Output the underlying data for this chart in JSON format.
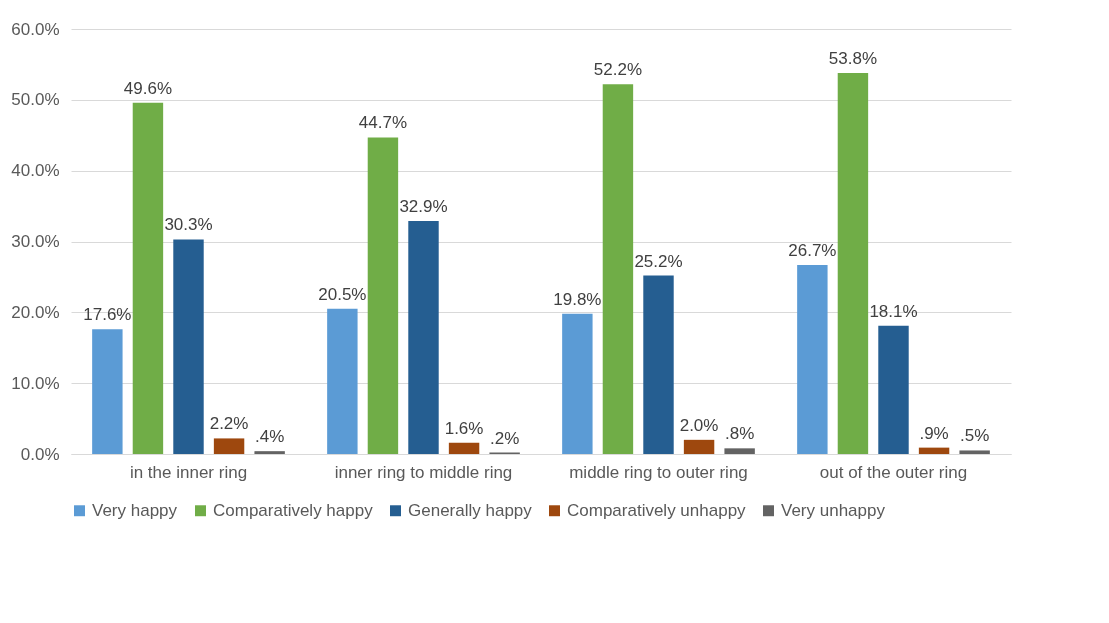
{
  "chart_data": {
    "type": "bar",
    "categories": [
      "in the inner ring",
      "inner ring to middle ring",
      "middle ring to outer ring",
      "out of the outer ring"
    ],
    "series": [
      {
        "name": "Very happy",
        "color": "#5b9bd5",
        "values": [
          17.6,
          20.5,
          19.8,
          26.7
        ],
        "value_labels": [
          "17.6%",
          "20.5%",
          "19.8%",
          "26.7%"
        ]
      },
      {
        "name": "Comparatively happy",
        "color": "#70ad47",
        "values": [
          49.6,
          44.7,
          52.2,
          53.8
        ],
        "value_labels": [
          "49.6%",
          "44.7%",
          "52.2%",
          "53.8%"
        ]
      },
      {
        "name": "Generally happy",
        "color": "#255e91",
        "values": [
          30.3,
          32.9,
          25.2,
          18.1
        ],
        "value_labels": [
          "30.3%",
          "32.9%",
          "25.2%",
          "18.1%"
        ]
      },
      {
        "name": "Comparatively unhappy",
        "color": "#9e480e",
        "values": [
          2.2,
          1.6,
          2.0,
          0.9
        ],
        "value_labels": [
          "2.2%",
          "1.6%",
          "2.0%",
          ".9%"
        ]
      },
      {
        "name": "Very unhappy",
        "color": "#636363",
        "values": [
          0.4,
          0.2,
          0.8,
          0.5
        ],
        "value_labels": [
          ".4%",
          ".2%",
          ".8%",
          ".5%"
        ]
      }
    ],
    "ylim": [
      0,
      60
    ],
    "yticks": [
      {
        "value": 0,
        "label": "0.0%"
      },
      {
        "value": 10,
        "label": "10.0%"
      },
      {
        "value": 20,
        "label": "20.0%"
      },
      {
        "value": 30,
        "label": "30.0%"
      },
      {
        "value": 40,
        "label": "40.0%"
      },
      {
        "value": 50,
        "label": "50.0%"
      },
      {
        "value": 60,
        "label": "60.0%"
      }
    ],
    "grid": "y",
    "legend": "bottom"
  }
}
